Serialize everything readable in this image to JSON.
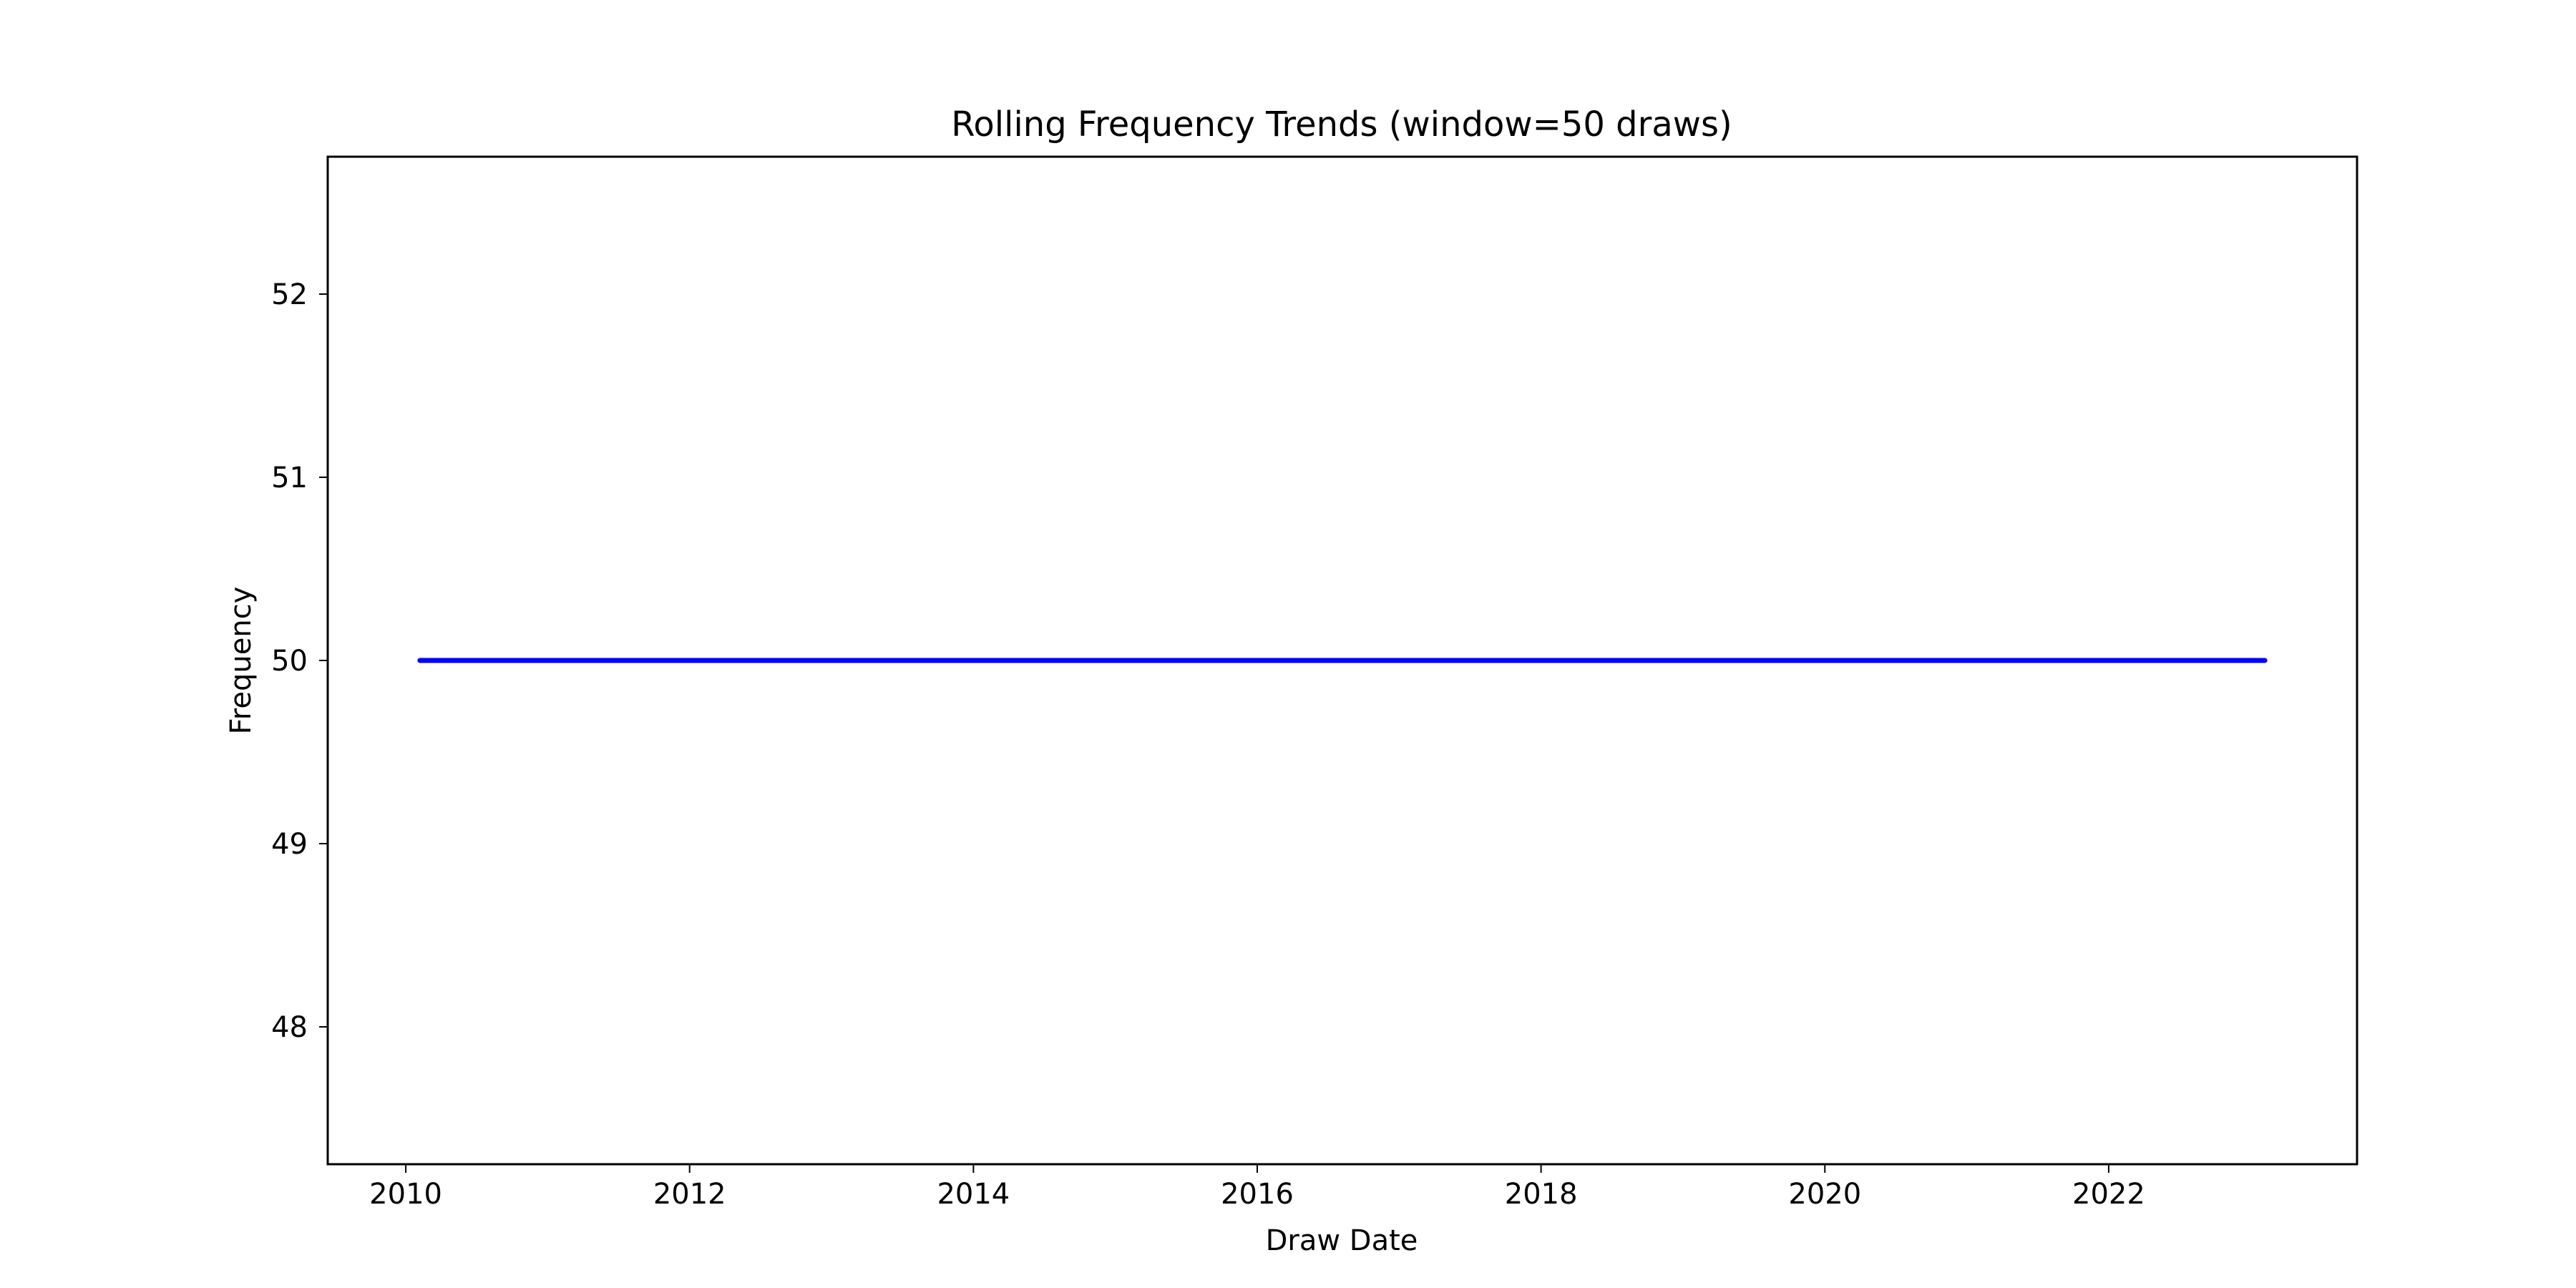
{
  "chart_data": {
    "type": "line",
    "title": "Rolling Frequency Trends (window=50 draws)",
    "xlabel": "Draw Date",
    "ylabel": "Frequency",
    "xlim": [
      2009.45,
      2023.75
    ],
    "ylim": [
      47.25,
      52.75
    ],
    "x_ticks": [
      2010,
      2012,
      2014,
      2016,
      2018,
      2020,
      2022
    ],
    "x_tick_labels": [
      "2010",
      "2012",
      "2014",
      "2016",
      "2018",
      "2020",
      "2022"
    ],
    "y_ticks": [
      48,
      49,
      50,
      51,
      52
    ],
    "y_tick_labels": [
      "48",
      "49",
      "50",
      "51",
      "52"
    ],
    "grid": false,
    "series": [
      {
        "color": "#0000ff",
        "x": [
          2010.1,
          2023.1
        ],
        "y": [
          50,
          50
        ]
      }
    ]
  }
}
